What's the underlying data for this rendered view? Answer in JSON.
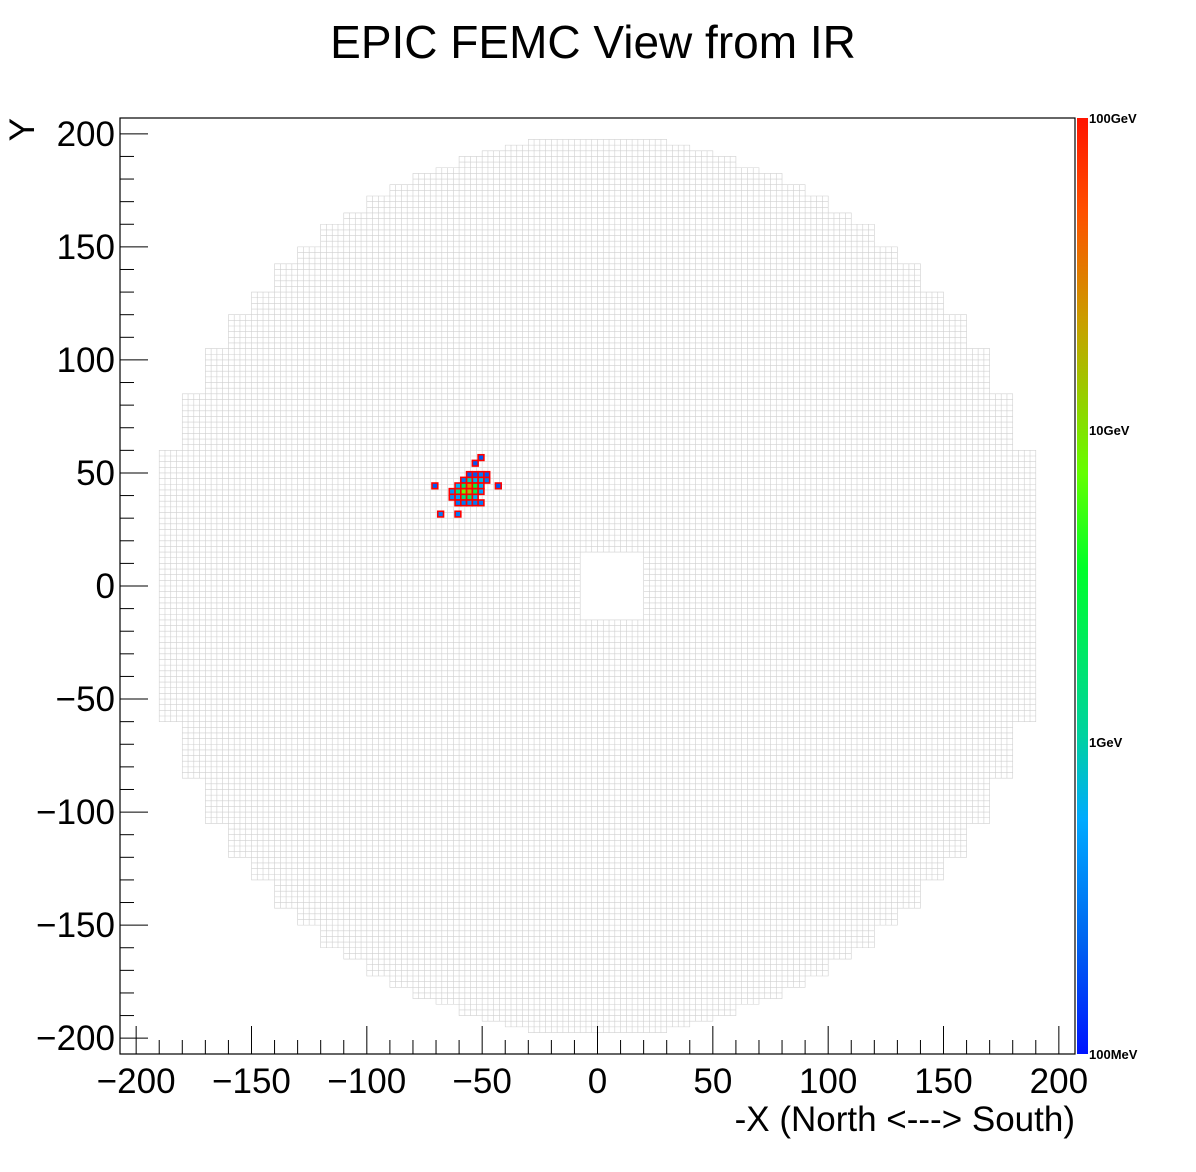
{
  "chart_data": {
    "type": "heatmap",
    "title": "EPIC FEMC View from IR",
    "xlabel": "-X (North <---> South)",
    "ylabel": "Y",
    "xlim": [
      -207,
      207
    ],
    "ylim": [
      -207,
      207
    ],
    "x_ticks": [
      -200,
      -150,
      -100,
      -50,
      0,
      50,
      100,
      150,
      200
    ],
    "y_ticks": [
      200,
      150,
      100,
      50,
      0,
      -50,
      -100,
      -150,
      -200
    ],
    "x_tick_labels": [
      "−200",
      "−150",
      "−100",
      "−50",
      "0",
      "50",
      "100",
      "150",
      "200"
    ],
    "y_tick_labels": [
      "200",
      "150",
      "100",
      "50",
      "0",
      "−50",
      "−100",
      "−150",
      "−200"
    ],
    "colorbar": {
      "scale": "log",
      "range_gev": [
        0.1,
        100
      ],
      "labels": [
        {
          "text": "100GeV",
          "value": 100
        },
        {
          "text": "10GeV",
          "value": 10
        },
        {
          "text": "1GeV",
          "value": 1
        },
        {
          "text": "100MeV",
          "value": 0.1
        }
      ]
    },
    "detector": {
      "cell_size": 2.5,
      "outer_radius": 200,
      "beam_hole": {
        "x": [
          -8,
          20
        ],
        "y": [
          -15,
          15
        ]
      },
      "grid_color": "#d0d0d0"
    },
    "hits": [
      {
        "x": -70.5,
        "y": 44.3,
        "e": 0.2
      },
      {
        "x": -68,
        "y": 31.8,
        "e": 0.3
      },
      {
        "x": -60.5,
        "y": 31.8,
        "e": 0.3
      },
      {
        "x": -63,
        "y": 41.8,
        "e": 0.4
      },
      {
        "x": -63,
        "y": 39.3,
        "e": 0.4
      },
      {
        "x": -60.5,
        "y": 44.3,
        "e": 0.6
      },
      {
        "x": -60.5,
        "y": 41.8,
        "e": 1.5
      },
      {
        "x": -60.5,
        "y": 39.3,
        "e": 0.5
      },
      {
        "x": -60.5,
        "y": 36.8,
        "e": 0.3
      },
      {
        "x": -58,
        "y": 46.8,
        "e": 0.3
      },
      {
        "x": -58,
        "y": 44.3,
        "e": 2.0
      },
      {
        "x": -58,
        "y": 41.8,
        "e": 8.0
      },
      {
        "x": -58,
        "y": 39.3,
        "e": 1.5
      },
      {
        "x": -58,
        "y": 36.8,
        "e": 0.3
      },
      {
        "x": -55.5,
        "y": 49.3,
        "e": 0.2
      },
      {
        "x": -55.5,
        "y": 46.8,
        "e": 1.0
      },
      {
        "x": -55.5,
        "y": 44.3,
        "e": 25
      },
      {
        "x": -55.5,
        "y": 41.8,
        "e": 15
      },
      {
        "x": -55.5,
        "y": 39.3,
        "e": 2.0
      },
      {
        "x": -55.5,
        "y": 36.8,
        "e": 0.4
      },
      {
        "x": -53,
        "y": 49.3,
        "e": 0.2
      },
      {
        "x": -53,
        "y": 46.8,
        "e": 0.6
      },
      {
        "x": -53,
        "y": 44.3,
        "e": 3.0
      },
      {
        "x": -53,
        "y": 41.8,
        "e": 2.5
      },
      {
        "x": -53,
        "y": 39.3,
        "e": 0.6
      },
      {
        "x": -53,
        "y": 36.8,
        "e": 0.3
      },
      {
        "x": -53,
        "y": 54.3,
        "e": 0.2
      },
      {
        "x": -50.5,
        "y": 49.3,
        "e": 0.3
      },
      {
        "x": -50.5,
        "y": 46.8,
        "e": 0.7
      },
      {
        "x": -50.5,
        "y": 44.3,
        "e": 0.6
      },
      {
        "x": -50.5,
        "y": 41.8,
        "e": 0.5
      },
      {
        "x": -50.5,
        "y": 36.8,
        "e": 0.3
      },
      {
        "x": -50.5,
        "y": 56.8,
        "e": 0.2
      },
      {
        "x": -48,
        "y": 46.8,
        "e": 0.3
      },
      {
        "x": -48,
        "y": 49.3,
        "e": 0.2
      },
      {
        "x": -43,
        "y": 44.3,
        "e": 0.2
      }
    ]
  }
}
